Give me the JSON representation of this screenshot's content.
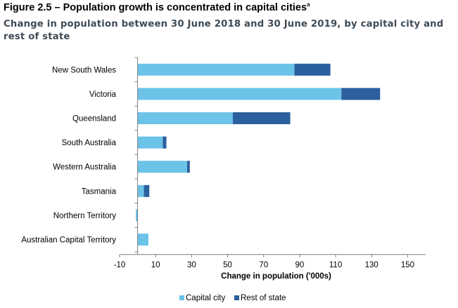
{
  "figure_title": "Figure 2.5 – Population growth is concentrated in capital cities",
  "figure_title_note": "a",
  "subtitle": "Change in population between 30 June 2018 and 30 June 2019, by capital city and rest of state",
  "colors": {
    "capital": "#6cc3e8",
    "rest": "#2b5f9e",
    "axis": "#7f7f7f"
  },
  "chart_data": {
    "type": "bar",
    "orientation": "horizontal",
    "stacked": true,
    "title": "Figure 2.5 – Population growth is concentrated in capital cities",
    "subtitle": "Change in population between 30 June 2018 and 30 June 2019, by capital city and rest of state",
    "categories": [
      "New South Wales",
      "Victoria",
      "Queensland",
      "South Australia",
      "Western Australia",
      "Tasmania",
      "Northern Territory",
      "Australian Capital Territory"
    ],
    "series": [
      {
        "name": "Capital city",
        "values": [
          87.1,
          113.2,
          52.9,
          14.0,
          27.5,
          3.5,
          -1.0,
          6.0
        ]
      },
      {
        "name": "Rest of state",
        "values": [
          20.0,
          21.5,
          31.9,
          2.0,
          1.5,
          3.0,
          0.0,
          0.0
        ]
      }
    ],
    "xlabel": "Change in population ('000s)",
    "ylabel": "",
    "xlim": [
      -10,
      160
    ],
    "xticks": [
      -10,
      10,
      30,
      50,
      70,
      90,
      110,
      130,
      150
    ],
    "grid": false,
    "legend": "bottom-center"
  }
}
